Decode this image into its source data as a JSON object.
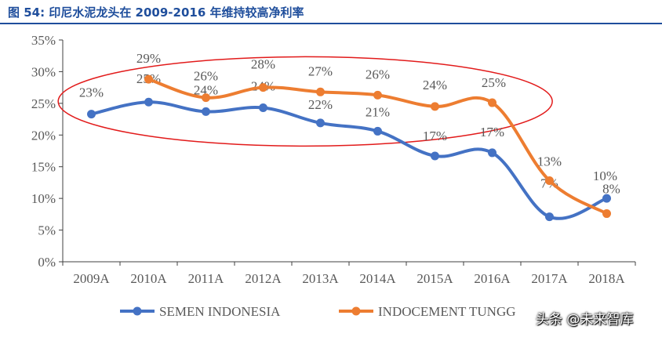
{
  "header": {
    "title": "图 54:  印尼水泥龙头在 2009-2016 年维持较高净利率"
  },
  "watermark": {
    "text": "头条 @未来智库"
  },
  "colors": {
    "series_blue": "#4472c4",
    "series_orange": "#ed7d31",
    "highlight_ellipse": "#e21b1b",
    "axis": "#404040",
    "text": "#595959",
    "title": "#1f4e9c"
  },
  "chart_data": {
    "type": "line",
    "title": "",
    "xlabel": "",
    "ylabel": "",
    "ylim": [
      0,
      35
    ],
    "y_ticks": [
      "0%",
      "5%",
      "10%",
      "15%",
      "20%",
      "25%",
      "30%",
      "35%"
    ],
    "grid": false,
    "legend_position": "bottom",
    "categories": [
      "2009A",
      "2010A",
      "2011A",
      "2012A",
      "2013A",
      "2014A",
      "2015A",
      "2016A",
      "2017A",
      "2018A"
    ],
    "series": [
      {
        "name": "SEMEN INDONESIA",
        "color": "#4472c4",
        "x": [
          "2009A",
          "2010A",
          "2011A",
          "2012A",
          "2013A",
          "2014A",
          "2015A",
          "2016A",
          "2017A",
          "2018A"
        ],
        "values": [
          23.3,
          25.2,
          23.7,
          24.3,
          21.9,
          20.6,
          16.7,
          17.2,
          7.1,
          10.0
        ],
        "labels": [
          "23%",
          "25%",
          "24%",
          "24%",
          "22%",
          "21%",
          "17%",
          "17%",
          "7%",
          "10%"
        ]
      },
      {
        "name": "INDOCEMENT TUNGG",
        "color": "#ed7d31",
        "x": [
          "2010A",
          "2011A",
          "2012A",
          "2013A",
          "2014A",
          "2015A",
          "2016A",
          "2017A",
          "2018A"
        ],
        "values": [
          28.8,
          25.9,
          27.5,
          26.8,
          26.3,
          24.5,
          25.1,
          12.8,
          7.6
        ],
        "labels": [
          "29%",
          "26%",
          "28%",
          "27%",
          "26%",
          "24%",
          "25%",
          "13%",
          "8%"
        ]
      }
    ],
    "annotations": [
      {
        "type": "ellipse",
        "description": "red highlight around 2009A-2016A",
        "from": "2009A",
        "to": "2016A"
      }
    ]
  }
}
